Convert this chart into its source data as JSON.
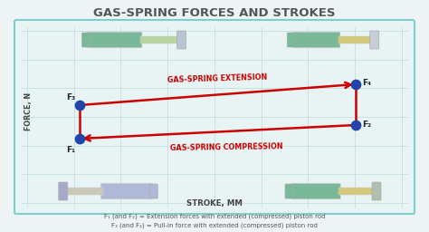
{
  "title": "GAS-SPRING FORCES AND STROKES",
  "title_color": "#555555",
  "bg_color": "#eef3f5",
  "box_bg": "#e8f4f4",
  "box_border": "#7ecece",
  "ylabel": "FORCE, N",
  "xlabel": "STROKE, MM",
  "f1_label": "F₁",
  "f2_label": "F₂",
  "f3_label": "F₃",
  "f4_label": "F₄",
  "ext_label": "GAS-SPRING EXTENSION",
  "comp_label": "GAS-SPRING COMPRESSION",
  "arrow_color": "#cc0000",
  "point_color": "#2244aa",
  "point_size": 55,
  "caption1": "F₁ (and F₂) = Extension forces with extended (compressed) piston rod",
  "caption2": "F₃ (and F₄) = Pull-in force with extended (compressed) piston rod",
  "caption_color": "#555555",
  "grid_color": "#c5dede",
  "spring_green": "#7ab89a",
  "spring_yellow": "#d4c87a",
  "spring_gray": "#b0bec5",
  "spring_lavender": "#b0b8d8"
}
